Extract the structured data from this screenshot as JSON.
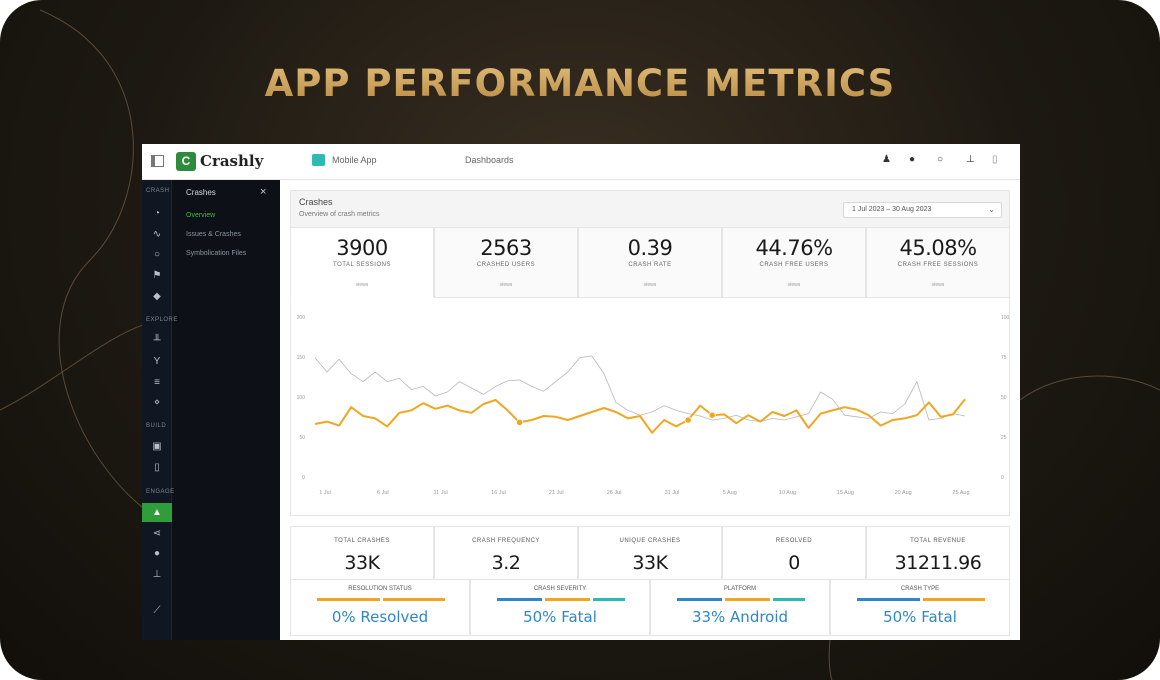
{
  "headline": "APP PERFORMANCE METRICS",
  "topbar": {
    "logo_mark": "C",
    "logo_text": "Crashly",
    "app_name": "Mobile App",
    "dashboard_name": "Dashboards",
    "icons": [
      "user-icon",
      "help-icon",
      "notification-icon",
      "settings-icon",
      "account-icon"
    ]
  },
  "sidebar": {
    "rail_sections": [
      "CRASH",
      "EXPLORE",
      "BUILD",
      "ENGAGE"
    ],
    "panel_title": "Crashes",
    "panel_items": [
      {
        "label": "Overview",
        "active": true
      },
      {
        "label": "Issues & Crashes",
        "active": false
      },
      {
        "label": "Symbolication Files",
        "active": false
      }
    ]
  },
  "card": {
    "title": "Crashes",
    "subtitle": "Overview of crash metrics",
    "date_range": "1 Jul 2023 – 30 Aug 2023"
  },
  "kpis": [
    {
      "value": "3900",
      "label": "TOTAL SESSIONS",
      "sub": "views"
    },
    {
      "value": "2563",
      "label": "CRASHED USERS",
      "sub": "views"
    },
    {
      "value": "0.39",
      "label": "CRASH RATE",
      "sub": "views"
    },
    {
      "value": "44.76%",
      "label": "CRASH FREE USERS",
      "sub": "views"
    },
    {
      "value": "45.08%",
      "label": "CRASH FREE SESSIONS",
      "sub": "views"
    }
  ],
  "chart_data": {
    "type": "line",
    "x_ticks": [
      "1 Jul",
      "6 Jul",
      "11 Jul",
      "16 Jul",
      "21 Jul",
      "26 Jul",
      "31 Jul",
      "5 Aug",
      "10 Aug",
      "15 Aug",
      "20 Aug",
      "25 Aug"
    ],
    "y_ticks_left": [
      "200",
      "150",
      "100",
      "50",
      "0"
    ],
    "y_ticks_right": [
      "100",
      "75",
      "50",
      "25",
      "0"
    ],
    "series": [
      {
        "color": "#f0a623",
        "values": [
          65,
          68,
          63,
          86,
          75,
          72,
          62,
          79,
          82,
          91,
          84,
          88,
          82,
          79,
          90,
          95,
          82,
          67,
          70,
          75,
          74,
          70,
          75,
          80,
          85,
          80,
          72,
          75,
          54,
          70,
          62,
          70,
          88,
          76,
          77,
          66,
          76,
          68,
          80,
          75,
          82,
          60,
          78,
          82,
          86,
          83,
          76,
          63,
          70,
          72,
          76,
          92,
          74,
          77,
          96
        ],
        "markers": [
          17,
          31,
          33
        ]
      },
      {
        "color": "#b8b8b8",
        "values": [
          148,
          130,
          146,
          128,
          118,
          130,
          118,
          122,
          108,
          112,
          100,
          105,
          118,
          110,
          102,
          112,
          119,
          120,
          112,
          106,
          118,
          130,
          148,
          150,
          128,
          92,
          82,
          76,
          80,
          88,
          82,
          78,
          75,
          70,
          72,
          76,
          70,
          68,
          72,
          70,
          74,
          78,
          105,
          96,
          76,
          74,
          72,
          80,
          78,
          90,
          118,
          70,
          72,
          78,
          75
        ]
      }
    ]
  },
  "stats": [
    {
      "label": "TOTAL CRASHES",
      "value": "33K"
    },
    {
      "label": "CRASH FREQUENCY",
      "value": "3.2"
    },
    {
      "label": "UNIQUE CRASHES",
      "value": "33K"
    },
    {
      "label": "RESOLVED",
      "value": "0"
    },
    {
      "label": "TOTAL REVENUE",
      "value": "31211.96"
    }
  ],
  "breakdowns": [
    {
      "label": "RESOLUTION STATUS",
      "value": "0% Resolved",
      "bars": [
        "#f0a623",
        "#f0a623"
      ]
    },
    {
      "label": "CRASH SEVERITY",
      "value": "50% Fatal",
      "bars": [
        "#2f86c8",
        "#f0a623",
        "#2eb9b2"
      ]
    },
    {
      "label": "PLATFORM",
      "value": "33% Android",
      "bars": [
        "#2f86c8",
        "#f0a623",
        "#2eb9b2"
      ]
    },
    {
      "label": "CRASH TYPE",
      "value": "50% Fatal",
      "bars": [
        "#2f86c8",
        "#f0a623"
      ]
    }
  ]
}
